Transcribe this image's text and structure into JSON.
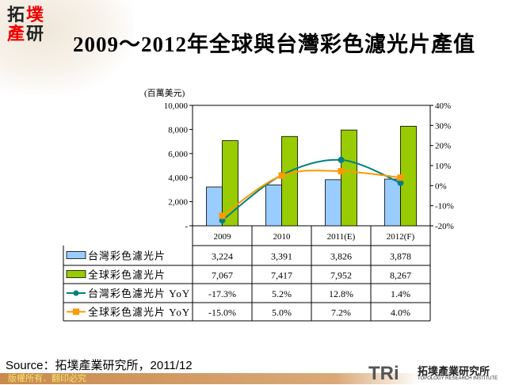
{
  "logo": {
    "chars": [
      "拓",
      "墣",
      "產",
      "研"
    ]
  },
  "title": "2009～2012年全球與台灣彩色濾光片產值",
  "chart_data": {
    "type": "bar+line",
    "unit_label": "(百萬美元)",
    "categories": [
      "2009",
      "2010",
      "2011(E)",
      "2012(F)"
    ],
    "left_axis": {
      "ticks": [
        "-",
        "2,000",
        "4,000",
        "6,000",
        "8,000",
        "10,000"
      ],
      "range": [
        0,
        10000
      ]
    },
    "right_axis": {
      "ticks": [
        "-20%",
        "-10%",
        "0%",
        "10%",
        "20%",
        "30%",
        "40%"
      ],
      "range": [
        -20,
        40
      ]
    },
    "series": [
      {
        "name": "台灣彩色濾光片",
        "type": "bar",
        "axis": "left",
        "color": "#99ccff",
        "values": [
          3224,
          3391,
          3826,
          3878
        ],
        "labels": [
          "3,224",
          "3,391",
          "3,826",
          "3,878"
        ]
      },
      {
        "name": "全球彩色濾光片",
        "type": "bar",
        "axis": "left",
        "color": "#99cc00",
        "values": [
          7067,
          7417,
          7952,
          8267
        ],
        "labels": [
          "7,067",
          "7,417",
          "7,952",
          "8,267"
        ]
      },
      {
        "name": "台灣彩色濾光片 YoY",
        "type": "line",
        "axis": "right",
        "color": "#008080",
        "marker": "circle",
        "values": [
          -17.3,
          5.2,
          12.8,
          1.4
        ],
        "labels": [
          "-17.3%",
          "5.2%",
          "12.8%",
          "1.4%"
        ]
      },
      {
        "name": "全球彩色濾光片 YoY",
        "type": "line",
        "axis": "right",
        "color": "#ff9900",
        "marker": "square",
        "values": [
          -15.0,
          5.0,
          7.2,
          4.0
        ],
        "labels": [
          "-15.0%",
          "5.0%",
          "7.2%",
          "4.0%"
        ]
      }
    ],
    "grid": false
  },
  "source": "Source：拓墣產業研究所，2011/12",
  "footer": "版權所有．翻印必究",
  "brand": {
    "mark": "TRi",
    "name_zh": "拓墣產業研究所",
    "name_en": "TOPOLOGY RESEARCH INSTITUTE"
  }
}
